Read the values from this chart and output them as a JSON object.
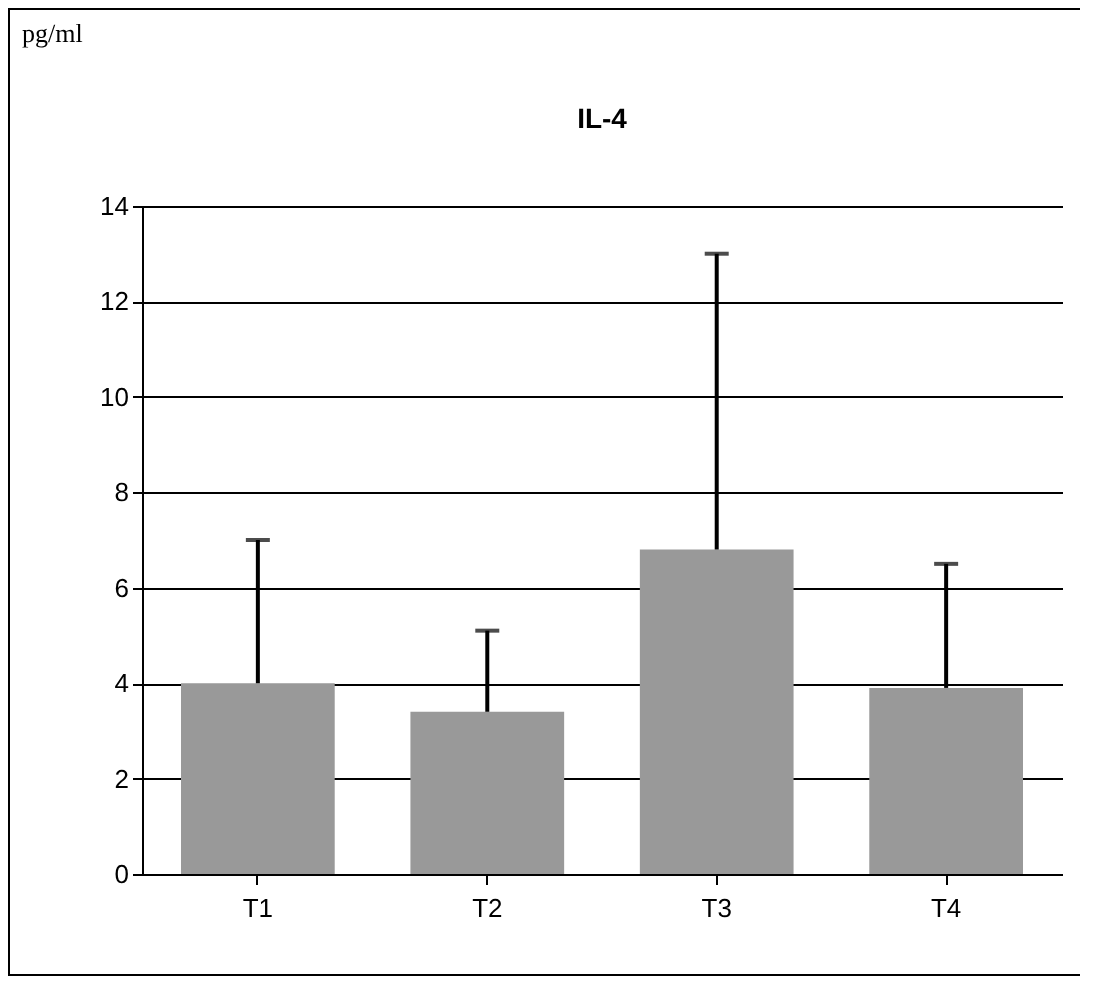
{
  "chart_data": {
    "type": "bar",
    "title": "IL-4",
    "annotations": [
      "pg/ml"
    ],
    "categories": [
      "T1",
      "T2",
      "T3",
      "T4"
    ],
    "values": [
      4.0,
      3.4,
      6.8,
      3.9
    ],
    "errors": [
      [
        4.0,
        7.0
      ],
      [
        3.4,
        5.1
      ],
      [
        6.8,
        13.0
      ],
      [
        3.9,
        6.5
      ]
    ],
    "color": "#999999",
    "ylim": [
      0,
      14
    ],
    "yticks": [
      0,
      2,
      4,
      6,
      8,
      10,
      12,
      14
    ],
    "grid": "y"
  }
}
